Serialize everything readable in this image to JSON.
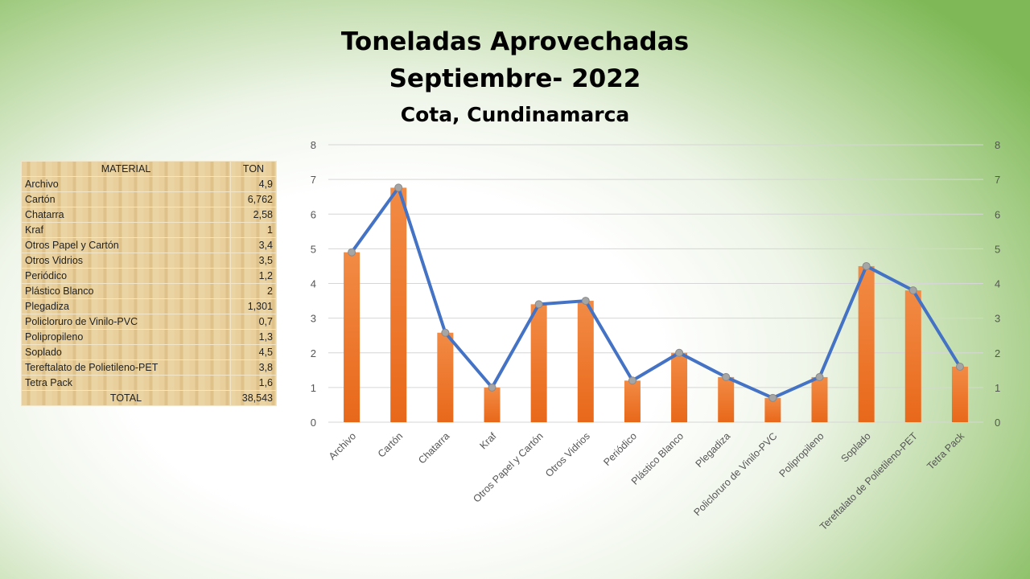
{
  "title": {
    "line1": "Toneladas Aprovechadas",
    "line2": "Septiembre- 2022",
    "subtitle": "Cota, Cundinamarca"
  },
  "table": {
    "headers": [
      "MATERIAL",
      "TON"
    ],
    "rows": [
      [
        "Archivo",
        "4,9"
      ],
      [
        "Cartón",
        "6,762"
      ],
      [
        "Chatarra",
        "2,58"
      ],
      [
        "Kraf",
        "1"
      ],
      [
        "Otros Papel y Cartón",
        "3,4"
      ],
      [
        "Otros Vidrios",
        "3,5"
      ],
      [
        "Periódico",
        "1,2"
      ],
      [
        "Plástico Blanco",
        "2"
      ],
      [
        "Plegadiza",
        "1,301"
      ],
      [
        "Policloruro de Vinilo-PVC",
        "0,7"
      ],
      [
        "Polipropileno",
        "1,3"
      ],
      [
        "Soplado",
        "4,5"
      ],
      [
        "Tereftalato de Polietileno-PET",
        "3,8"
      ],
      [
        "Tetra Pack",
        "1,6"
      ]
    ],
    "total_label": "TOTAL",
    "total_value": "38,543"
  },
  "chart_data": {
    "type": "bar",
    "title": "Toneladas Aprovechadas Septiembre- 2022",
    "categories": [
      "Archivo",
      "Cartón",
      "Chatarra",
      "Kraf",
      "Otros Papel y Cartón",
      "Otros Vidrios",
      "Periódico",
      "Plástico Blanco",
      "Plegadiza",
      "Policloruro de Vinilo-PVC",
      "Polipropileno",
      "Soplado",
      "Tereftalato de Polietileno-PET",
      "Tetra Pack"
    ],
    "series": [
      {
        "name": "TON (bars)",
        "type": "bar",
        "color": "#f07b2a",
        "values": [
          4.9,
          6.762,
          2.58,
          1,
          3.4,
          3.5,
          1.2,
          2,
          1.301,
          0.7,
          1.3,
          4.5,
          3.8,
          1.6
        ]
      },
      {
        "name": "TON (line)",
        "type": "line",
        "color": "#4472c4",
        "values": [
          4.9,
          6.762,
          2.58,
          1,
          3.4,
          3.5,
          1.2,
          2,
          1.301,
          0.7,
          1.3,
          4.5,
          3.8,
          1.6
        ]
      }
    ],
    "ylim": [
      0,
      8
    ],
    "yticks": [
      "0",
      "1",
      "2",
      "3",
      "4",
      "5",
      "6",
      "7",
      "8"
    ],
    "grid": true
  }
}
